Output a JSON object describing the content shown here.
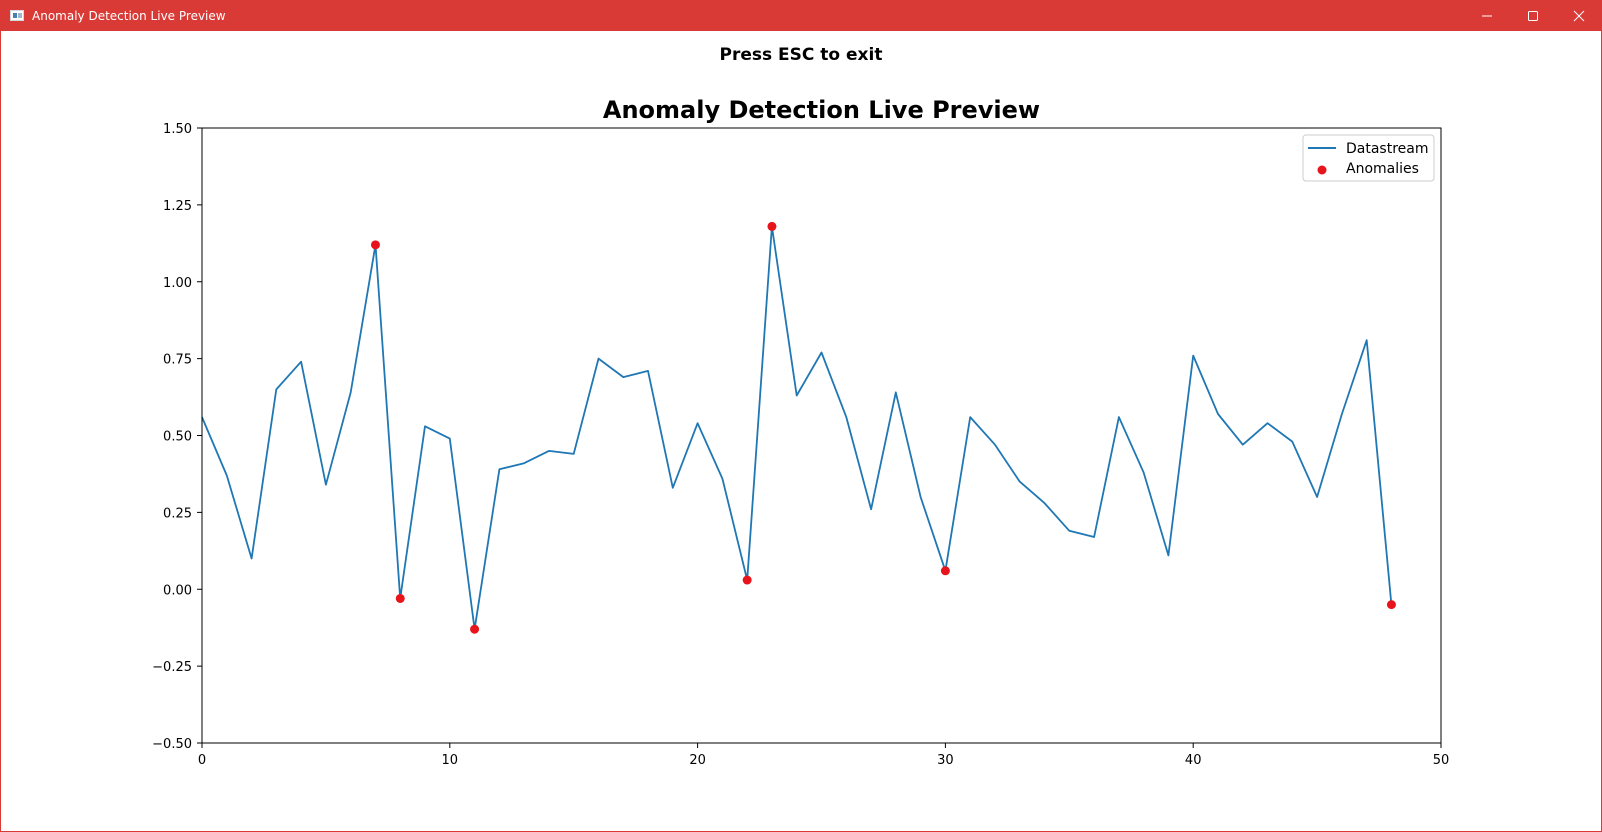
{
  "window": {
    "title": "Anomaly Detection Live Preview",
    "controls": {
      "minimize": "minimize-icon",
      "maximize": "maximize-icon",
      "close": "close-icon"
    }
  },
  "header": {
    "hint": "Press ESC to exit"
  },
  "colors": {
    "titlebar": "#d93a35",
    "line": "#1f77b4",
    "anomaly": "#e8141b"
  },
  "chart_data": {
    "type": "line",
    "title": "Anomaly Detection Live Preview",
    "xlabel": "",
    "ylabel": "",
    "xlim": [
      0,
      50
    ],
    "ylim": [
      -0.5,
      1.5
    ],
    "xticks": [
      0,
      10,
      20,
      30,
      40,
      50
    ],
    "xtick_labels": [
      "0",
      "10",
      "20",
      "30",
      "40",
      "50"
    ],
    "yticks": [
      -0.5,
      -0.25,
      0,
      0.25,
      0.5,
      0.75,
      1,
      1.25,
      1.5
    ],
    "ytick_labels": [
      "−0.50",
      "−0.25",
      "0.00",
      "0.25",
      "0.50",
      "0.75",
      "1.00",
      "1.25",
      "1.50"
    ],
    "grid": false,
    "legend": "top-right",
    "series": [
      {
        "name": "Datastream",
        "kind": "line",
        "color": "#1f77b4",
        "x": [
          0,
          1,
          2,
          3,
          4,
          5,
          6,
          7,
          8,
          9,
          10,
          11,
          12,
          13,
          14,
          15,
          16,
          17,
          18,
          19,
          20,
          21,
          22,
          23,
          24,
          25,
          26,
          27,
          28,
          29,
          30,
          31,
          32,
          33,
          34,
          35,
          36,
          37,
          38,
          39,
          40,
          41,
          42,
          43,
          44,
          45,
          46,
          47,
          48
        ],
        "y": [
          0.56,
          0.37,
          0.1,
          0.65,
          0.74,
          0.34,
          0.64,
          1.12,
          -0.03,
          0.53,
          0.49,
          -0.13,
          0.39,
          0.41,
          0.45,
          0.44,
          0.75,
          0.69,
          0.71,
          0.33,
          0.54,
          0.36,
          0.03,
          1.18,
          0.63,
          0.77,
          0.56,
          0.26,
          0.64,
          0.3,
          0.06,
          0.56,
          0.47,
          0.35,
          0.28,
          0.19,
          0.17,
          0.56,
          0.38,
          0.11,
          0.76,
          0.57,
          0.47,
          0.54,
          0.48,
          0.3,
          0.57,
          0.81,
          -0.05
        ]
      },
      {
        "name": "Anomalies",
        "kind": "scatter",
        "color": "#e8141b",
        "x": [
          7,
          8,
          11,
          22,
          23,
          30,
          48
        ],
        "y": [
          1.12,
          -0.03,
          -0.13,
          0.03,
          1.18,
          0.06,
          -0.05
        ]
      }
    ]
  }
}
